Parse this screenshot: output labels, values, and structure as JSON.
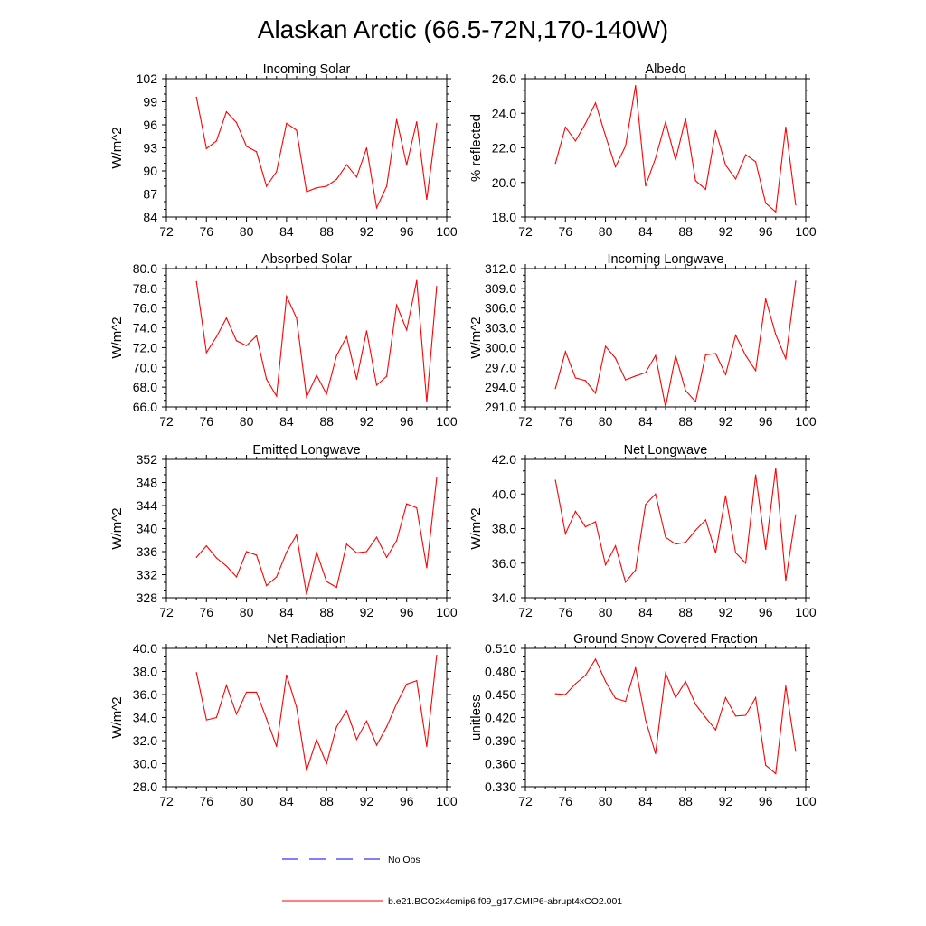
{
  "title": "Alaskan Arctic (66.5-72N,170-140W)",
  "legend": {
    "items": [
      {
        "label": "No Obs",
        "color": "#0000ff",
        "dashed": true
      },
      {
        "label": "b.e21.BCO2x4cmip6.f09_g17.CMIP6-abrupt4xCO2.001",
        "color": "#ff0000",
        "dashed": false
      }
    ]
  },
  "chart_data": [
    {
      "type": "line",
      "title": "Incoming Solar",
      "ylabel": "W/m^2",
      "xlim": [
        72,
        100
      ],
      "xticks": [
        "72",
        "76",
        "80",
        "84",
        "88",
        "92",
        "96",
        "100"
      ],
      "ylim": [
        84,
        102
      ],
      "yticks": [
        "84",
        "87",
        "90",
        "93",
        "96",
        "99",
        "102"
      ],
      "series_color": "#ff0000",
      "x": [
        75,
        76,
        77,
        78,
        79,
        80,
        81,
        82,
        83,
        84,
        85,
        86,
        87,
        88,
        89,
        90,
        91,
        92,
        93,
        94,
        95,
        96,
        97,
        98,
        99
      ],
      "values": [
        99.6,
        92.9,
        93.9,
        97.7,
        96.3,
        93.2,
        92.5,
        88.0,
        89.9,
        96.2,
        95.3,
        87.3,
        87.8,
        88.0,
        88.9,
        90.8,
        89.2,
        93.0,
        85.2,
        88.0,
        96.7,
        90.8,
        96.4,
        86.3,
        96.2
      ]
    },
    {
      "type": "line",
      "title": "Albedo",
      "ylabel": "% reflected",
      "xlim": [
        72,
        100
      ],
      "xticks": [
        "72",
        "76",
        "80",
        "84",
        "88",
        "92",
        "96",
        "100"
      ],
      "ylim": [
        18,
        26
      ],
      "yticks": [
        "18.0",
        "20.0",
        "22.0",
        "24.0",
        "26.0"
      ],
      "series_color": "#ff0000",
      "x": [
        75,
        76,
        77,
        78,
        79,
        80,
        81,
        82,
        83,
        84,
        85,
        86,
        87,
        88,
        89,
        90,
        91,
        92,
        93,
        94,
        95,
        96,
        97,
        98,
        99
      ],
      "values": [
        21.1,
        23.2,
        22.4,
        23.4,
        24.6,
        22.7,
        20.9,
        22.1,
        25.6,
        19.8,
        21.4,
        23.5,
        21.3,
        23.7,
        20.1,
        19.6,
        23.0,
        21.0,
        20.2,
        21.6,
        21.2,
        18.8,
        18.3,
        23.2,
        18.7
      ]
    },
    {
      "type": "line",
      "title": "Absorbed Solar",
      "ylabel": "W/m^2",
      "xlim": [
        72,
        100
      ],
      "xticks": [
        "72",
        "76",
        "80",
        "84",
        "88",
        "92",
        "96",
        "100"
      ],
      "ylim": [
        66,
        80
      ],
      "yticks": [
        "66.0",
        "68.0",
        "70.0",
        "72.0",
        "74.0",
        "76.0",
        "78.0",
        "80.0"
      ],
      "series_color": "#ff0000",
      "x": [
        75,
        76,
        77,
        78,
        79,
        80,
        81,
        82,
        83,
        84,
        85,
        86,
        87,
        88,
        89,
        90,
        91,
        92,
        93,
        94,
        95,
        96,
        97,
        98,
        99
      ],
      "values": [
        78.7,
        71.5,
        73.1,
        75.0,
        72.7,
        72.2,
        73.2,
        68.8,
        67.1,
        77.2,
        75.0,
        67.0,
        69.2,
        67.3,
        71.2,
        73.1,
        68.8,
        73.7,
        68.2,
        69.1,
        76.3,
        73.8,
        78.8,
        66.5,
        78.2
      ]
    },
    {
      "type": "line",
      "title": "Incoming Longwave",
      "ylabel": "W/m^2",
      "xlim": [
        72,
        100
      ],
      "xticks": [
        "72",
        "76",
        "80",
        "84",
        "88",
        "92",
        "96",
        "100"
      ],
      "ylim": [
        291,
        312
      ],
      "yticks": [
        "291.0",
        "294.0",
        "297.0",
        "300.0",
        "303.0",
        "306.0",
        "309.0",
        "312.0"
      ],
      "series_color": "#ff0000",
      "x": [
        75,
        76,
        77,
        78,
        79,
        80,
        81,
        82,
        83,
        84,
        85,
        86,
        87,
        88,
        89,
        90,
        91,
        92,
        93,
        94,
        95,
        96,
        97,
        98,
        99
      ],
      "values": [
        293.8,
        299.4,
        295.4,
        295.0,
        293.1,
        300.2,
        298.4,
        295.1,
        295.7,
        296.2,
        298.8,
        291.0,
        298.8,
        293.5,
        291.8,
        298.9,
        299.1,
        295.9,
        301.9,
        298.8,
        296.5,
        307.4,
        302.0,
        298.3,
        310.1
      ]
    },
    {
      "type": "line",
      "title": "Emitted Longwave",
      "ylabel": "W/m^2",
      "xlim": [
        72,
        100
      ],
      "xticks": [
        "72",
        "76",
        "80",
        "84",
        "88",
        "92",
        "96",
        "100"
      ],
      "ylim": [
        328,
        352
      ],
      "yticks": [
        "328",
        "332",
        "336",
        "340",
        "344",
        "348",
        "352"
      ],
      "series_color": "#ff0000",
      "x": [
        75,
        76,
        77,
        78,
        79,
        80,
        81,
        82,
        83,
        84,
        85,
        86,
        87,
        88,
        89,
        90,
        91,
        92,
        93,
        94,
        95,
        96,
        97,
        98,
        99
      ],
      "values": [
        335.0,
        337.0,
        334.9,
        333.5,
        331.6,
        336.0,
        335.4,
        330.1,
        331.6,
        335.9,
        338.9,
        328.6,
        335.9,
        330.8,
        329.8,
        337.3,
        335.8,
        336.0,
        338.5,
        335.0,
        337.9,
        344.3,
        343.6,
        333.2,
        348.8
      ]
    },
    {
      "type": "line",
      "title": "Net Longwave",
      "ylabel": "W/m^2",
      "xlim": [
        72,
        100
      ],
      "xticks": [
        "72",
        "76",
        "80",
        "84",
        "88",
        "92",
        "96",
        "100"
      ],
      "ylim": [
        34,
        42
      ],
      "yticks": [
        "34.0",
        "36.0",
        "38.0",
        "40.0",
        "42.0"
      ],
      "series_color": "#ff0000",
      "x": [
        75,
        76,
        77,
        78,
        79,
        80,
        81,
        82,
        83,
        84,
        85,
        86,
        87,
        88,
        89,
        90,
        91,
        92,
        93,
        94,
        95,
        96,
        97,
        98,
        99
      ],
      "values": [
        40.8,
        37.7,
        39.0,
        38.1,
        38.4,
        35.9,
        37.0,
        34.9,
        35.6,
        39.4,
        40.0,
        37.5,
        37.1,
        37.2,
        37.9,
        38.5,
        36.6,
        39.9,
        36.6,
        36.0,
        41.1,
        36.8,
        41.5,
        35.0,
        38.8
      ]
    },
    {
      "type": "line",
      "title": "Net Radiation",
      "ylabel": "W/m^2",
      "xlim": [
        72,
        100
      ],
      "xticks": [
        "72",
        "76",
        "80",
        "84",
        "88",
        "92",
        "96",
        "100"
      ],
      "ylim": [
        28,
        40
      ],
      "yticks": [
        "28.0",
        "30.0",
        "32.0",
        "34.0",
        "36.0",
        "38.0",
        "40.0"
      ],
      "series_color": "#ff0000",
      "x": [
        75,
        76,
        77,
        78,
        79,
        80,
        81,
        82,
        83,
        84,
        85,
        86,
        87,
        88,
        89,
        90,
        91,
        92,
        93,
        94,
        95,
        96,
        97,
        98,
        99
      ],
      "values": [
        37.9,
        33.8,
        34.0,
        36.8,
        34.3,
        36.2,
        36.2,
        33.9,
        31.5,
        37.7,
        34.9,
        29.4,
        32.1,
        30.0,
        33.2,
        34.6,
        32.1,
        33.7,
        31.6,
        33.2,
        35.2,
        36.9,
        37.2,
        31.5,
        39.4
      ]
    },
    {
      "type": "line",
      "title": "Ground Snow Covered Fraction",
      "ylabel": "unitless",
      "xlim": [
        72,
        100
      ],
      "xticks": [
        "72",
        "76",
        "80",
        "84",
        "88",
        "92",
        "96",
        "100"
      ],
      "ylim": [
        0.33,
        0.51
      ],
      "yticks": [
        "0.330",
        "0.360",
        "0.390",
        "0.420",
        "0.450",
        "0.480",
        "0.510"
      ],
      "series_color": "#ff0000",
      "x": [
        75,
        76,
        77,
        78,
        79,
        80,
        81,
        82,
        83,
        84,
        85,
        86,
        87,
        88,
        89,
        90,
        91,
        92,
        93,
        94,
        95,
        96,
        97,
        98,
        99
      ],
      "values": [
        0.451,
        0.45,
        0.464,
        0.475,
        0.496,
        0.467,
        0.445,
        0.441,
        0.485,
        0.417,
        0.373,
        0.478,
        0.446,
        0.467,
        0.437,
        0.42,
        0.404,
        0.446,
        0.422,
        0.423,
        0.446,
        0.358,
        0.347,
        0.461,
        0.376
      ]
    }
  ]
}
